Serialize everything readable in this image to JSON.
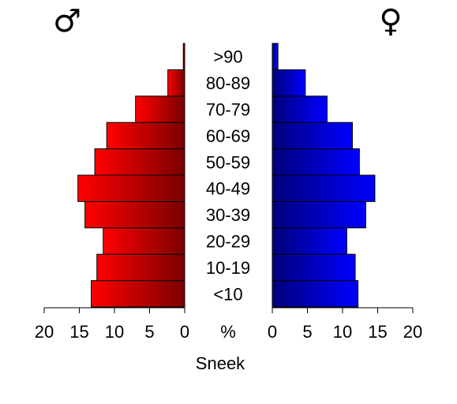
{
  "chart_data": {
    "type": "bar",
    "title": "",
    "xlabel": "Sneek",
    "unit_label": "%",
    "categories": [
      "<10",
      "10-19",
      "20-29",
      "30-39",
      "40-49",
      "50-59",
      "60-69",
      "70-79",
      "80-89",
      ">90"
    ],
    "xlim": [
      0,
      20
    ],
    "ticks": [
      0,
      5,
      10,
      15,
      20
    ],
    "tick_labels": [
      "20",
      "15",
      "10",
      "5",
      "0",
      "0",
      "5",
      "10",
      "15",
      "20"
    ],
    "series": [
      {
        "name": "♂",
        "values": [
          13.3,
          12.5,
          11.6,
          14.2,
          15.2,
          12.8,
          11.1,
          7.0,
          2.4,
          0.2
        ]
      },
      {
        "name": "♀",
        "values": [
          12.2,
          11.8,
          10.6,
          13.3,
          14.6,
          12.4,
          11.4,
          7.8,
          4.7,
          0.8
        ]
      }
    ],
    "male_color": "#ff0000",
    "female_color": "#0000ff",
    "grid": false
  }
}
